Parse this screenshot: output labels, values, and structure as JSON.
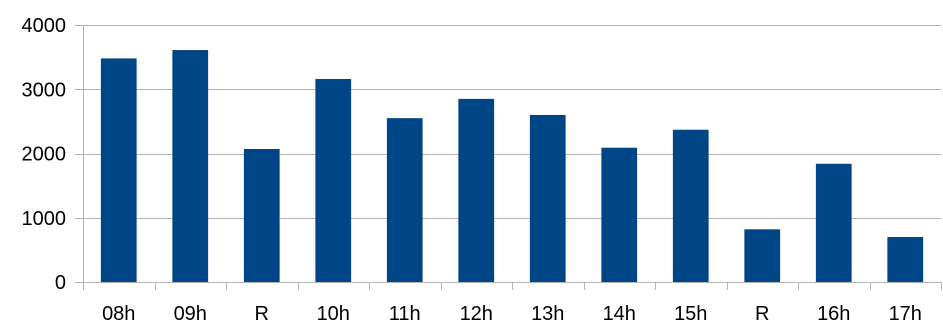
{
  "chart_data": {
    "type": "bar",
    "categories": [
      "08h",
      "09h",
      "R",
      "10h",
      "11h",
      "12h",
      "13h",
      "14h",
      "15h",
      "R",
      "16h",
      "17h"
    ],
    "values": [
      3480,
      3610,
      2070,
      3160,
      2550,
      2850,
      2600,
      2090,
      2370,
      820,
      1840,
      700
    ],
    "title": "",
    "xlabel": "",
    "ylabel": "",
    "ylim": [
      0,
      4000
    ],
    "yticks": [
      "0",
      "1000",
      "2000",
      "3000",
      "4000"
    ],
    "grid": true,
    "legend": "none",
    "bar_color": "#004586",
    "grid_color": "#b3b3b3"
  }
}
